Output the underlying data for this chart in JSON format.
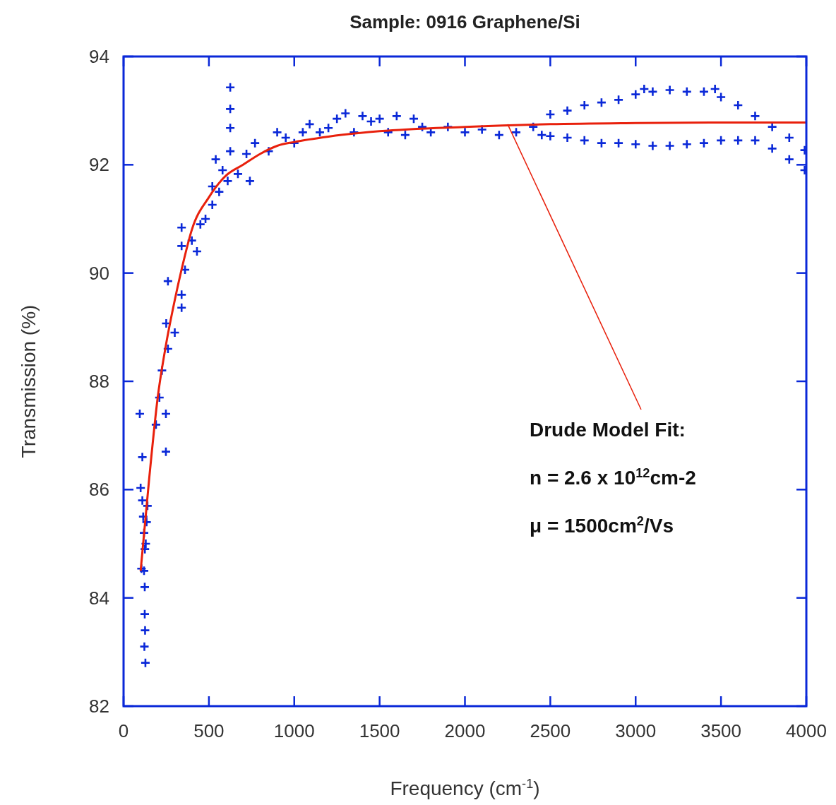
{
  "chart_data": {
    "type": "scatter",
    "title": "Sample: 0916 Graphene/Si",
    "xlabel": "Frequency (cm$^{-1}$)",
    "ylabel": "Transmission (%)",
    "xlim": [
      0,
      4000
    ],
    "ylim": [
      82,
      94
    ],
    "xticks": [
      0,
      500,
      1000,
      1500,
      2000,
      2500,
      3000,
      3500,
      4000
    ],
    "yticks": [
      82,
      84,
      86,
      88,
      90,
      92,
      94
    ],
    "annotations": [
      {
        "text": "Drude Model Fit:",
        "x": 2250,
        "y": 92.75
      },
      "n = 2.6 x 10$^{12}$cm-2",
      "μ = 1500cm$^{2}$/Vs"
    ],
    "series": [
      {
        "color": "#0a28d8",
        "marker": "cross",
        "x": [
          124,
          124,
          126,
          122,
          128,
          120,
          105,
          110,
          115,
          120,
          125,
          130,
          135,
          140,
          100,
          110,
          95,
          248,
          248,
          190,
          210,
          225,
          260,
          250,
          300,
          340,
          340,
          260,
          360,
          340,
          430,
          340,
          450,
          400,
          480,
          520,
          520,
          580,
          540,
          560,
          625,
          625,
          625,
          625,
          610,
          670,
          740,
          720,
          770,
          850,
          900,
          950,
          1000,
          1050,
          1090,
          1150,
          1200,
          1250,
          1300,
          1350,
          1400,
          1450,
          1500,
          1550,
          1600,
          1650,
          1700,
          1750,
          1800,
          1900,
          2000,
          2100,
          2200,
          2300,
          2400,
          2450,
          2500,
          2500,
          2600,
          2600,
          2700,
          2700,
          2800,
          2800,
          2900,
          2900,
          3000,
          3000,
          3050,
          3100,
          3100,
          3200,
          3200,
          3300,
          3300,
          3400,
          3400,
          3465,
          3500,
          3500,
          3600,
          3600,
          3700,
          3700,
          3800,
          3800,
          3900,
          3900,
          3990,
          3990
        ],
        "values": [
          84.2,
          83.7,
          83.4,
          83.1,
          82.8,
          84.5,
          84.54,
          85.8,
          85.5,
          85.2,
          84.9,
          85.0,
          85.4,
          85.7,
          86.03,
          86.6,
          87.4,
          87.4,
          86.7,
          87.2,
          87.7,
          88.2,
          88.6,
          89.07,
          88.9,
          89.36,
          89.6,
          89.85,
          90.06,
          90.5,
          90.4,
          90.84,
          90.9,
          90.6,
          91.0,
          91.26,
          91.6,
          91.9,
          92.1,
          91.5,
          92.25,
          92.68,
          93.03,
          93.43,
          91.7,
          91.83,
          91.7,
          92.2,
          92.4,
          92.25,
          92.6,
          92.5,
          92.4,
          92.6,
          92.75,
          92.6,
          92.68,
          92.85,
          92.95,
          92.6,
          92.9,
          92.8,
          92.85,
          92.6,
          92.9,
          92.55,
          92.85,
          92.7,
          92.6,
          92.7,
          92.6,
          92.65,
          92.55,
          92.6,
          92.7,
          92.55,
          92.93,
          92.53,
          93.0,
          92.5,
          93.1,
          92.45,
          93.15,
          92.4,
          93.2,
          92.4,
          93.3,
          92.38,
          93.4,
          93.35,
          92.35,
          93.38,
          92.35,
          93.35,
          92.38,
          93.35,
          92.4,
          93.4,
          93.25,
          92.45,
          93.1,
          92.45,
          92.9,
          92.45,
          92.7,
          92.3,
          92.5,
          92.1,
          92.27,
          91.9
        ]
      },
      {
        "type": "line",
        "color": "#e8200c",
        "x": [
          100,
          150,
          200,
          250,
          300,
          350,
          400,
          500,
          600,
          700,
          800,
          900,
          1000,
          1200,
          1500,
          2000,
          2500,
          3000,
          3500,
          4000
        ],
        "values": [
          84.5,
          86.2,
          87.7,
          88.7,
          89.5,
          90.2,
          90.8,
          91.4,
          91.8,
          92.0,
          92.2,
          92.35,
          92.42,
          92.52,
          92.62,
          92.7,
          92.75,
          92.77,
          92.78,
          92.78
        ]
      }
    ]
  }
}
